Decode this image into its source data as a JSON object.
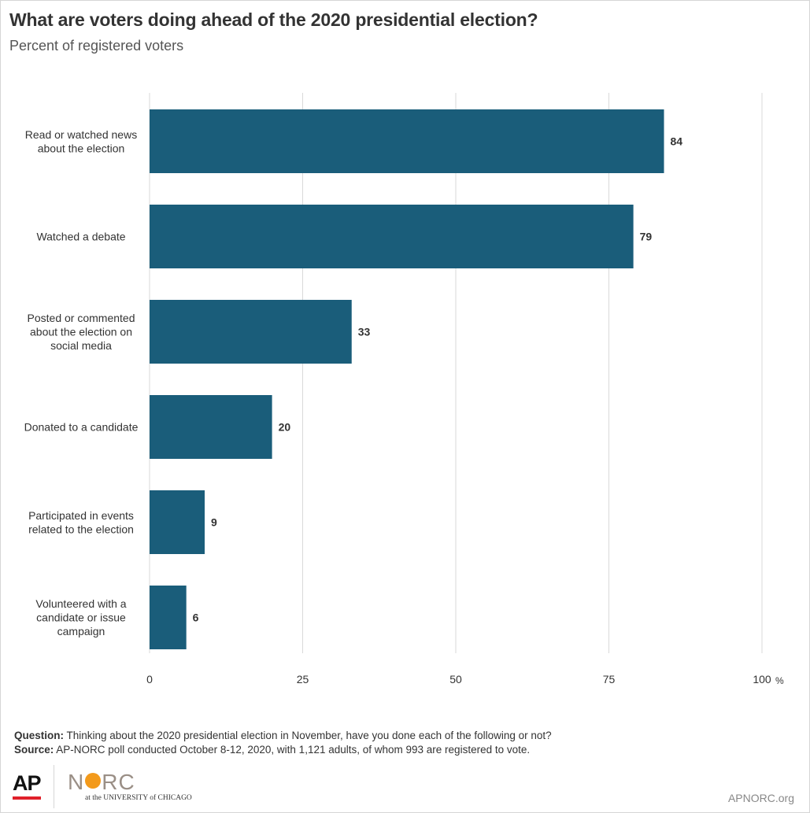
{
  "title": "What are voters  doing ahead of the 2020 presidential election?",
  "subtitle": "Percent of registered voters",
  "chart_data": {
    "type": "bar",
    "orientation": "horizontal",
    "categories": [
      [
        "Read or watched news",
        "about the election"
      ],
      [
        "Watched a debate"
      ],
      [
        "Posted or commented",
        "about the election on",
        "social media"
      ],
      [
        "Donated to a candidate"
      ],
      [
        "Participated in events",
        "related to the election"
      ],
      [
        "Volunteered with a",
        "candidate or issue",
        "campaign"
      ]
    ],
    "values": [
      84,
      79,
      33,
      20,
      9,
      6
    ],
    "xlim": [
      0,
      100
    ],
    "xticks": [
      "0",
      "25",
      "50",
      "75",
      "100"
    ],
    "x_unit": "%",
    "grid": true,
    "bar_color": "#1a5d7a"
  },
  "footer": {
    "question_label": "Question:",
    "question_text": "Thinking about the 2020 presidential election in November, have you done each of the following or not?",
    "source_label": "Source:",
    "source_text": "AP-NORC poll conducted October 8-12, 2020, with 1,121 adults, of whom 993 are registered to vote."
  },
  "logos": {
    "ap": "AP",
    "norc_left": "N",
    "norc_right": "RC",
    "norc_sub": "at the UNIVERSITY of CHICAGO"
  },
  "site": "APNORC.org"
}
